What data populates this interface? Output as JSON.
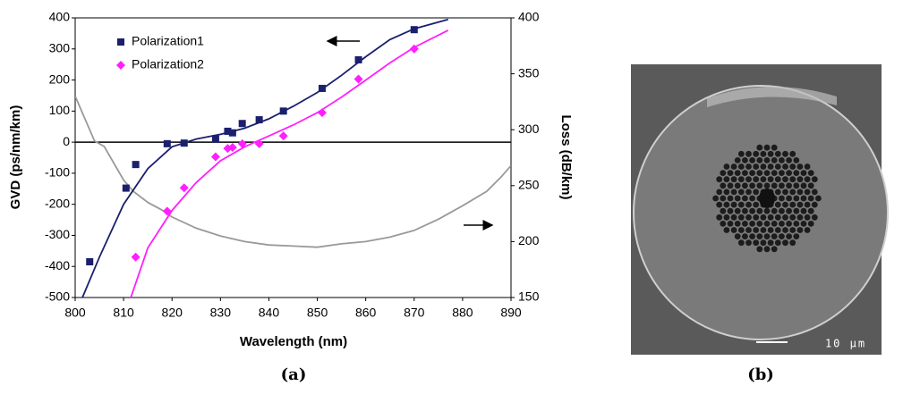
{
  "chart_data": {
    "type": "scatter",
    "xlabel": "Wavelength (nm)",
    "ylabel": "GVD (ps/nm/km)",
    "y2label": "Loss (dB/km)",
    "xlim": [
      800,
      890
    ],
    "xticks": [
      800,
      810,
      820,
      830,
      840,
      850,
      860,
      870,
      880,
      890
    ],
    "ylim": [
      -500,
      400
    ],
    "yticks": [
      -500,
      -400,
      -300,
      -200,
      -100,
      0,
      100,
      200,
      300,
      400
    ],
    "y2lim": [
      150,
      400
    ],
    "y2ticks": [
      150,
      200,
      250,
      300,
      350,
      400
    ],
    "legend": "upper left",
    "series": [
      {
        "name": "Polarization1",
        "color": "#1a1f6e",
        "marker": "square",
        "x": [
          803,
          810.5,
          812.5,
          819,
          822.5,
          829,
          831.5,
          832.5,
          834.5,
          838,
          843,
          851,
          858.5,
          870
        ],
        "values": [
          -385,
          -148,
          -72,
          -5,
          -3,
          10,
          35,
          30,
          60,
          72,
          100,
          173,
          265,
          362
        ]
      },
      {
        "name": "Polarization2",
        "color": "#ff1fff",
        "marker": "diamond",
        "x": [
          812.5,
          819,
          822.5,
          829,
          831.5,
          832.5,
          834.5,
          838,
          843,
          851,
          858.5,
          870
        ],
        "values": [
          -370,
          -222,
          -147,
          -47,
          -20,
          -17,
          -5,
          -5,
          20,
          95,
          203,
          300
        ]
      }
    ],
    "fits": [
      {
        "color": "#1a1f6e",
        "x": [
          801.5,
          805,
          810,
          815,
          820,
          825,
          830,
          835,
          840,
          845,
          850,
          855,
          860,
          865,
          870,
          877
        ],
        "values": [
          -500,
          -370,
          -200,
          -85,
          -15,
          10,
          25,
          45,
          75,
          115,
          160,
          215,
          275,
          330,
          365,
          395
        ]
      },
      {
        "color": "#ff1fff",
        "x": [
          811.5,
          815,
          820,
          825,
          830,
          835,
          840,
          845,
          850,
          855,
          860,
          865,
          870,
          877
        ],
        "values": [
          -500,
          -340,
          -220,
          -130,
          -60,
          -15,
          20,
          55,
          95,
          145,
          200,
          255,
          305,
          360
        ]
      }
    ],
    "loss": {
      "color": "#999999",
      "axis": "y2",
      "x": [
        800,
        802,
        804,
        806,
        808,
        810,
        812,
        815,
        818,
        820,
        825,
        830,
        835,
        840,
        845,
        850,
        855,
        860,
        865,
        870,
        875,
        880,
        885,
        888,
        890
      ],
      "values": [
        330,
        310,
        290,
        285,
        270,
        255,
        245,
        235,
        228,
        222,
        212,
        205,
        200,
        197,
        196,
        195,
        198,
        200,
        204,
        210,
        220,
        232,
        245,
        258,
        268
      ]
    }
  },
  "panel_labels": [
    "(a)",
    "(b)"
  ],
  "image": {
    "scale_label": "10 µm"
  }
}
